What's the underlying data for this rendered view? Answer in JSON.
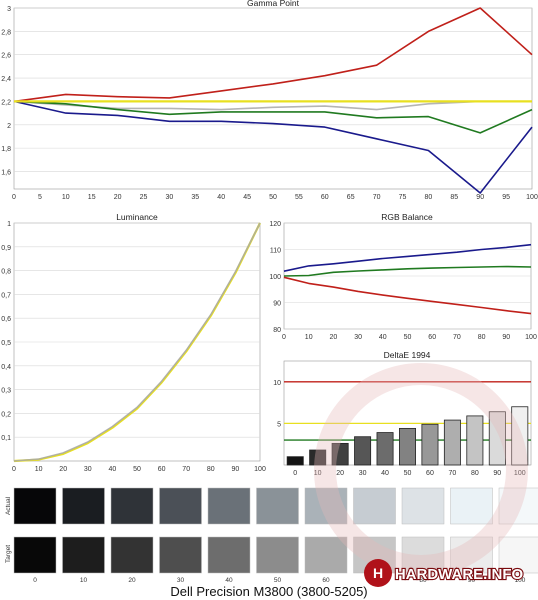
{
  "caption": "Dell Precision M3800 (3800-5205)",
  "watermark": "HARDWARE.INFO",
  "colors": {
    "red": "#c0201a",
    "green": "#207a20",
    "blue": "#1a1a8c",
    "yellow": "#e8e020",
    "gray": "#a8a8a8",
    "grid": "#d8d8d8",
    "axis": "#888888"
  },
  "chart_data": [
    {
      "id": "gamma",
      "type": "line",
      "title": "Gamma Point",
      "x": [
        0,
        10,
        20,
        30,
        40,
        50,
        60,
        70,
        80,
        90,
        100
      ],
      "xticks": [
        0,
        5,
        10,
        15,
        20,
        25,
        30,
        35,
        40,
        45,
        50,
        55,
        60,
        65,
        70,
        75,
        80,
        85,
        90,
        95,
        100
      ],
      "yticks": [
        1.6,
        1.8,
        2,
        2.2,
        2.4,
        2.6,
        2.8,
        3
      ],
      "ytick_labels": [
        "1,6",
        "1,8",
        "2",
        "2,2",
        "2,4",
        "2,6",
        "2,8",
        "3"
      ],
      "xlim": [
        0,
        100
      ],
      "ylim": [
        1.45,
        3
      ],
      "grid": true,
      "series": [
        {
          "color_key": "red",
          "values": [
            2.2,
            2.26,
            2.24,
            2.23,
            2.29,
            2.35,
            2.42,
            2.51,
            2.8,
            3.0,
            2.6
          ]
        },
        {
          "color_key": "gray",
          "values": [
            2.2,
            2.17,
            2.14,
            2.14,
            2.13,
            2.15,
            2.16,
            2.13,
            2.18,
            2.2,
            2.2
          ]
        },
        {
          "color_key": "green",
          "values": [
            2.2,
            2.18,
            2.13,
            2.09,
            2.11,
            2.11,
            2.11,
            2.06,
            2.07,
            1.93,
            2.13
          ]
        },
        {
          "color_key": "blue",
          "values": [
            2.2,
            2.1,
            2.08,
            2.03,
            2.03,
            2.01,
            1.98,
            1.88,
            1.78,
            1.4,
            1.98
          ]
        },
        {
          "color_key": "yellow",
          "values": [
            2.2,
            2.2,
            2.2,
            2.2,
            2.2,
            2.2,
            2.2,
            2.2,
            2.2,
            2.2,
            2.2
          ]
        }
      ]
    },
    {
      "id": "luminance",
      "type": "line",
      "title": "Luminance",
      "x": [
        0,
        10,
        20,
        30,
        40,
        50,
        60,
        70,
        80,
        90,
        100
      ],
      "xticks": [
        0,
        10,
        20,
        30,
        40,
        50,
        60,
        70,
        80,
        90,
        100
      ],
      "yticks": [
        0.1,
        0.2,
        0.3,
        0.4,
        0.5,
        0.6,
        0.7,
        0.8,
        0.9,
        1
      ],
      "ytick_labels": [
        "0,1",
        "0,2",
        "0,3",
        "0,4",
        "0,5",
        "0,6",
        "0,7",
        "0,8",
        "0,9",
        "1"
      ],
      "xlim": [
        0,
        100
      ],
      "ylim": [
        0,
        1
      ],
      "grid": true,
      "series": [
        {
          "color_key": "yellow",
          "values": [
            0,
            0.006,
            0.03,
            0.075,
            0.14,
            0.22,
            0.33,
            0.46,
            0.61,
            0.79,
            1.0
          ]
        },
        {
          "color_key": "gray",
          "values": [
            0,
            0.008,
            0.034,
            0.08,
            0.145,
            0.225,
            0.335,
            0.465,
            0.615,
            0.795,
            1.0
          ]
        }
      ]
    },
    {
      "id": "rgb_balance",
      "type": "line",
      "title": "RGB Balance",
      "x": [
        0,
        10,
        20,
        30,
        40,
        50,
        60,
        70,
        80,
        90,
        100
      ],
      "xticks": [
        0,
        10,
        20,
        30,
        40,
        50,
        60,
        70,
        80,
        90,
        100
      ],
      "yticks": [
        80,
        90,
        100,
        110,
        120
      ],
      "ytick_labels": [
        "80",
        "90",
        "100",
        "110",
        "120"
      ],
      "xlim": [
        0,
        100
      ],
      "ylim": [
        80,
        120
      ],
      "grid": true,
      "series": [
        {
          "color_key": "blue",
          "values": [
            101.8,
            103.8,
            104.6,
            105.6,
            106.6,
            107.4,
            108.2,
            109,
            110,
            110.8,
            111.8
          ]
        },
        {
          "color_key": "green",
          "values": [
            100,
            100.2,
            101.4,
            101.9,
            102.3,
            102.7,
            103,
            103.2,
            103.4,
            103.6,
            103.4
          ]
        },
        {
          "color_key": "red",
          "values": [
            99.5,
            97.2,
            95.8,
            94.2,
            92.8,
            91.6,
            90.4,
            89.3,
            88.1,
            86.9,
            85.8
          ]
        }
      ]
    },
    {
      "id": "deltae",
      "type": "bar",
      "title": "DeltaE 1994",
      "categories": [
        0,
        10,
        20,
        30,
        40,
        50,
        60,
        70,
        80,
        90,
        100
      ],
      "values": [
        1.0,
        1.8,
        2.6,
        3.4,
        3.9,
        4.4,
        4.9,
        5.4,
        5.9,
        6.4,
        7.0
      ],
      "yticks": [
        5,
        10
      ],
      "ytick_labels": [
        "5",
        "10"
      ],
      "ylim": [
        0,
        12.5
      ],
      "reference_lines": [
        {
          "value": 10,
          "color_key": "red"
        },
        {
          "value": 5,
          "color_key": "yellow"
        },
        {
          "value": 3,
          "color_key": "green"
        }
      ],
      "grid": false
    }
  ],
  "swatches": {
    "labels": [
      "0",
      "10",
      "20",
      "30",
      "40",
      "50",
      "60",
      "70",
      "80",
      "90",
      "100"
    ],
    "row_labels": [
      "Actual",
      "Target"
    ],
    "actual": [
      "#060608",
      "#1a1d21",
      "#2f3338",
      "#4b5057",
      "#6a7178",
      "#8a9298",
      "#aab2b8",
      "#c6ccd2",
      "#dde2e6",
      "#eaf2f6",
      "#f4f8fa"
    ],
    "target": [
      "#080808",
      "#1d1d1d",
      "#333333",
      "#4e4e4e",
      "#6d6d6d",
      "#8c8c8c",
      "#aaaaaa",
      "#c6c6c6",
      "#dcdcdc",
      "#ececec",
      "#f6f6f6"
    ]
  }
}
